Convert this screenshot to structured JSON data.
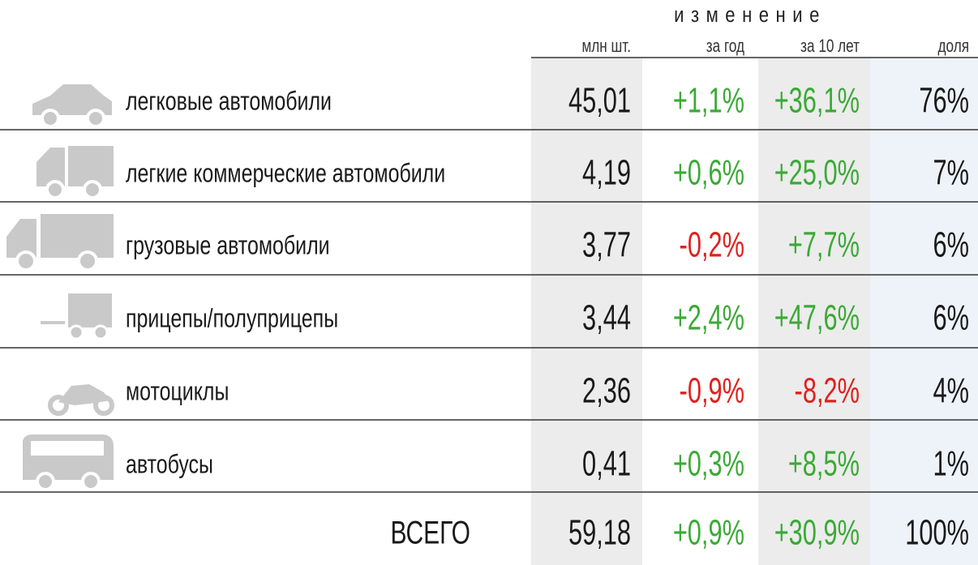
{
  "header": {
    "group": "изменение",
    "columns": [
      "млн шт.",
      "за год",
      "за 10 лет",
      "доля"
    ]
  },
  "table": {
    "rows": [
      [
        "легковые автомобили",
        "45,01",
        "+1,1%",
        "+36,1%",
        "76%"
      ],
      [
        "легкие коммерческие автомобили",
        "4,19",
        "+0,6%",
        "+25,0%",
        "7%"
      ],
      [
        "грузовые автомобили",
        "3,77",
        "-0,2%",
        "+7,7%",
        "6%"
      ],
      [
        "прицепы/полуприцепы",
        "3,44",
        "+2,4%",
        "+47,6%",
        "6%"
      ],
      [
        "мотоциклы",
        "2,36",
        "-0,9%",
        "-8,2%",
        "4%"
      ],
      [
        "автобусы",
        "0,41",
        "+0,3%",
        "+8,5%",
        "1%"
      ]
    ],
    "total": [
      "ВСЕГО",
      "59,18",
      "+0,9%",
      "+30,9%",
      "100%"
    ]
  }
}
